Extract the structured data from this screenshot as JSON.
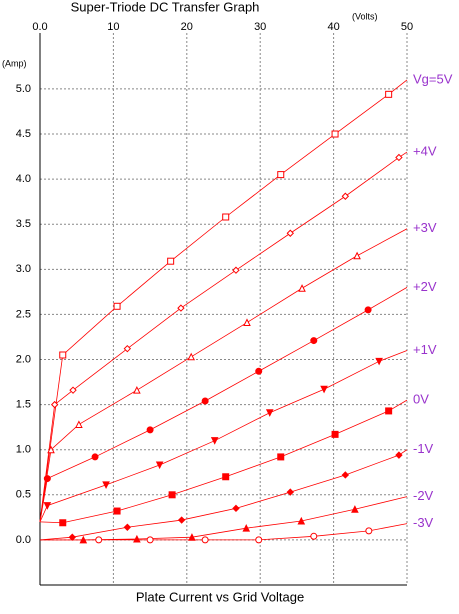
{
  "chart_data": {
    "type": "line",
    "title": "Super-Triode DC Transfer Graph",
    "x_unit_label": "(Volts)",
    "y_unit_label": "(Amp)",
    "x_label": "Plate Current vs Grid Voltage",
    "xlim": [
      0,
      50
    ],
    "ylim": [
      -0.5,
      5.62
    ],
    "xticks": [
      {
        "value": 0,
        "label": "0.0"
      },
      10,
      20,
      30,
      40,
      50
    ],
    "yticks": [
      {
        "value": 0,
        "label": "0.0"
      },
      0.5,
      {
        "value": 1,
        "label": "1.0"
      },
      1.5,
      {
        "value": 2,
        "label": "2.0"
      },
      2.5,
      {
        "value": 3,
        "label": "3.0"
      },
      3.5,
      {
        "value": 4,
        "label": "4.0"
      },
      4.5,
      {
        "value": 5,
        "label": "5.0"
      }
    ],
    "grid": true,
    "label_color": "#9933cc",
    "series": [
      {
        "name": "Vg=5V",
        "color": "#ff0000",
        "marker": "square-open",
        "x": [
          0,
          3.1,
          10.5,
          17.8,
          25.3,
          32.8,
          40.2,
          47.5,
          50
        ],
        "values": [
          0.2,
          2.05,
          2.59,
          3.09,
          3.58,
          4.05,
          4.5,
          4.94,
          5.1
        ]
      },
      {
        "name": "+4V",
        "color": "#ff0000",
        "marker": "diamond-open",
        "x": [
          0,
          2,
          4.5,
          11.9,
          19.2,
          26.7,
          34.1,
          41.6,
          48.9,
          50
        ],
        "values": [
          0.2,
          1.5,
          1.66,
          2.12,
          2.57,
          2.99,
          3.4,
          3.81,
          4.24,
          4.3
        ]
      },
      {
        "name": "+3V",
        "color": "#ff0000",
        "marker": "triangle-open",
        "x": [
          0,
          1.5,
          5.3,
          13.2,
          20.6,
          28.2,
          35.7,
          43.2,
          50
        ],
        "values": [
          0.2,
          1.0,
          1.28,
          1.66,
          2.03,
          2.41,
          2.79,
          3.15,
          3.45
        ]
      },
      {
        "name": "+2V",
        "color": "#ff0000",
        "marker": "circle",
        "x": [
          0,
          1,
          7.5,
          15,
          22.5,
          29.8,
          37.3,
          44.7,
          50
        ],
        "values": [
          0.2,
          0.68,
          0.92,
          1.22,
          1.54,
          1.87,
          2.21,
          2.55,
          2.8
        ]
      },
      {
        "name": "+1V",
        "color": "#ff0000",
        "marker": "triangle-down",
        "x": [
          0,
          1,
          9,
          16.3,
          23.8,
          31.3,
          38.7,
          46.2,
          50
        ],
        "values": [
          0.2,
          0.38,
          0.61,
          0.83,
          1.1,
          1.41,
          1.67,
          1.98,
          2.1
        ]
      },
      {
        "name": "0V",
        "color": "#ff0000",
        "marker": "square",
        "x": [
          0,
          3.1,
          10.5,
          18,
          25.3,
          32.8,
          40.2,
          47.5,
          50
        ],
        "values": [
          0.2,
          0.19,
          0.32,
          0.5,
          0.7,
          0.92,
          1.17,
          1.43,
          1.55
        ]
      },
      {
        "name": "-1V",
        "color": "#ff0000",
        "marker": "diamond",
        "x": [
          0,
          4.4,
          11.9,
          19.3,
          26.7,
          34.1,
          41.6,
          48.9,
          50
        ],
        "values": [
          0,
          0.03,
          0.14,
          0.22,
          0.35,
          0.53,
          0.72,
          0.94,
          1.0
        ]
      },
      {
        "name": "-2V",
        "color": "#ff0000",
        "marker": "triangle",
        "x": [
          0,
          5.9,
          13.2,
          20.7,
          28.1,
          35.6,
          42.9,
          50
        ],
        "values": [
          0,
          0,
          0.01,
          0.03,
          0.13,
          0.21,
          0.34,
          0.48
        ]
      },
      {
        "name": "-3V",
        "color": "#ff0000",
        "marker": "circle-open",
        "x": [
          0,
          8,
          15,
          22.5,
          29.8,
          37.3,
          44.8,
          50
        ],
        "values": [
          0,
          0,
          0,
          0,
          0,
          0.04,
          0.1,
          0.18
        ]
      }
    ]
  }
}
